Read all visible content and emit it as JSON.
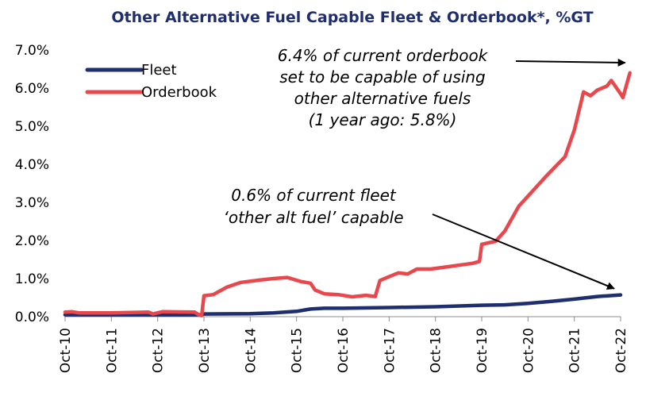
{
  "chart_data": {
    "type": "line",
    "title": "Other Alternative Fuel Capable Fleet & Orderbook*, %GT",
    "xlabel": "",
    "ylabel": "",
    "x_ticks": [
      "Oct-10",
      "Oct-11",
      "Oct-12",
      "Oct-13",
      "Oct-14",
      "Oct-15",
      "Oct-16",
      "Oct-17",
      "Oct-18",
      "Oct-19",
      "Oct-20",
      "Oct-21",
      "Oct-22"
    ],
    "x_range": [
      0,
      12
    ],
    "y_ticks": [
      "0.0%",
      "1.0%",
      "2.0%",
      "3.0%",
      "4.0%",
      "5.0%",
      "6.0%",
      "7.0%"
    ],
    "ylim": [
      0,
      7
    ],
    "grid": false,
    "legend_position": "top-left",
    "series": [
      {
        "name": "Fleet",
        "color": "#1f2e6e",
        "points": [
          [
            0,
            0.05
          ],
          [
            1,
            0.05
          ],
          [
            2,
            0.05
          ],
          [
            2.95,
            0.05
          ],
          [
            3,
            0.07
          ],
          [
            4,
            0.08
          ],
          [
            4.5,
            0.1
          ],
          [
            5,
            0.14
          ],
          [
            5.3,
            0.2
          ],
          [
            5.6,
            0.22
          ],
          [
            6,
            0.22
          ],
          [
            7,
            0.24
          ],
          [
            8,
            0.26
          ],
          [
            9,
            0.3
          ],
          [
            9.5,
            0.31
          ],
          [
            10,
            0.35
          ],
          [
            10.5,
            0.4
          ],
          [
            11,
            0.46
          ],
          [
            11.5,
            0.53
          ],
          [
            12,
            0.57
          ]
        ]
      },
      {
        "name": "Orderbook",
        "color": "#e8474c",
        "points": [
          [
            0,
            0.12
          ],
          [
            0.15,
            0.13
          ],
          [
            0.3,
            0.1
          ],
          [
            1,
            0.1
          ],
          [
            1.8,
            0.12
          ],
          [
            1.9,
            0.07
          ],
          [
            2.1,
            0.13
          ],
          [
            2.8,
            0.12
          ],
          [
            2.9,
            0.04
          ],
          [
            2.95,
            0.03
          ],
          [
            3,
            0.55
          ],
          [
            3.2,
            0.58
          ],
          [
            3.5,
            0.78
          ],
          [
            3.8,
            0.9
          ],
          [
            4.2,
            0.96
          ],
          [
            4.5,
            1.0
          ],
          [
            4.8,
            1.03
          ],
          [
            5.1,
            0.92
          ],
          [
            5.3,
            0.88
          ],
          [
            5.4,
            0.7
          ],
          [
            5.6,
            0.6
          ],
          [
            5.9,
            0.58
          ],
          [
            6.2,
            0.52
          ],
          [
            6.5,
            0.56
          ],
          [
            6.7,
            0.53
          ],
          [
            6.8,
            0.95
          ],
          [
            7,
            1.05
          ],
          [
            7.2,
            1.15
          ],
          [
            7.4,
            1.12
          ],
          [
            7.6,
            1.25
          ],
          [
            7.9,
            1.25
          ],
          [
            8.2,
            1.3
          ],
          [
            8.5,
            1.35
          ],
          [
            8.8,
            1.4
          ],
          [
            8.95,
            1.45
          ],
          [
            9,
            1.9
          ],
          [
            9.3,
            1.98
          ],
          [
            9.5,
            2.25
          ],
          [
            9.8,
            2.9
          ],
          [
            10.1,
            3.3
          ],
          [
            10.4,
            3.7
          ],
          [
            10.6,
            3.95
          ],
          [
            10.8,
            4.2
          ],
          [
            11,
            4.9
          ],
          [
            11.2,
            5.9
          ],
          [
            11.35,
            5.8
          ],
          [
            11.5,
            5.95
          ],
          [
            11.7,
            6.05
          ],
          [
            11.8,
            6.2
          ],
          [
            12,
            5.85
          ],
          [
            12.05,
            5.75
          ],
          [
            12.2,
            6.4
          ]
        ]
      }
    ],
    "annotations": [
      {
        "id": "orderbook",
        "lines": [
          "6.4% of current orderbook",
          "set to be capable of using",
          "other alternative fuels",
          "(1 year ago: 5.8%)"
        ],
        "arrow_to": [
          12.2,
          6.4
        ]
      },
      {
        "id": "fleet",
        "lines": [
          "0.6% of current fleet",
          "‘other alt fuel’ capable"
        ],
        "arrow_to": [
          12.0,
          0.57
        ]
      }
    ]
  }
}
